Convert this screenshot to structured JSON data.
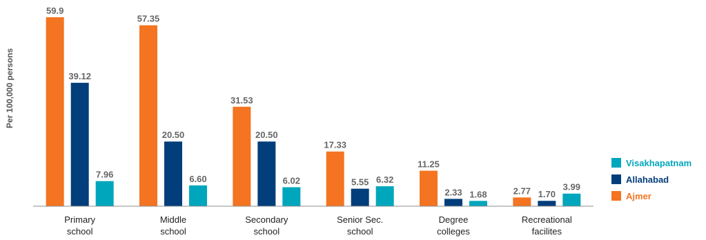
{
  "chart_data": {
    "type": "bar",
    "ylabel": "Per 100,000 persons",
    "xlabel": "",
    "categories": [
      [
        "Primary",
        "school"
      ],
      [
        "Middle",
        "school"
      ],
      [
        "Secondary",
        "school"
      ],
      [
        "Senior Sec.",
        "school"
      ],
      [
        "Degree",
        "colleges"
      ],
      [
        "Recreational",
        "facilites"
      ]
    ],
    "series": [
      {
        "name": "Ajmer",
        "color": "#F47421",
        "values": [
          59.9,
          57.35,
          31.53,
          17.33,
          11.25,
          2.77
        ],
        "labels": [
          "59.9",
          "57.35",
          "31.53",
          "17.33",
          "11.25",
          "2.77"
        ]
      },
      {
        "name": "Allahabad",
        "color": "#023E7B",
        "values": [
          39.12,
          20.5,
          20.5,
          5.55,
          2.33,
          1.7
        ],
        "labels": [
          "39.12",
          "20.50",
          "20.50",
          "5.55",
          "2.33",
          "1.70"
        ]
      },
      {
        "name": "Visakhapatnam",
        "color": "#00A7BC",
        "values": [
          7.96,
          6.6,
          6.02,
          6.32,
          1.68,
          3.99
        ],
        "labels": [
          "7.96",
          "6.60",
          "6.02",
          "6.32",
          "1.68",
          "3.99"
        ]
      }
    ],
    "legend": {
      "placement": "right",
      "order": [
        "Visakhapatnam",
        "Allahabad",
        "Ajmer"
      ]
    },
    "ylim": [
      0,
      60
    ],
    "grid": false
  }
}
